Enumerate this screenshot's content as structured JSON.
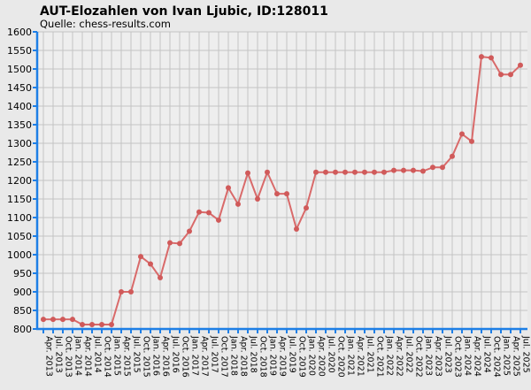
{
  "title": "AUT-Elozahlen von Ivan Ljubic, ID:128011",
  "subtitle": "Quelle: chess-results.com",
  "colors": {
    "background": "#e9e9e9",
    "plot_background": "#eeeeee",
    "grid": "#c4c4c4",
    "axis": "#1e7fe6",
    "series_line": "#d96a6a",
    "series_point": "#d05a5a"
  },
  "chart_data": {
    "type": "line",
    "title": "AUT-Elozahlen von Ivan Ljubic, ID:128011",
    "subtitle": "Quelle: chess-results.com",
    "xlabel": "",
    "ylabel": "",
    "ylim": [
      800,
      1600
    ],
    "ytick_step": 50,
    "grid": true,
    "legend": "none",
    "categories": [
      "Apr. 2013",
      "Jul. 2013",
      "Oct. 2013",
      "Jan. 2014",
      "Apr. 2014",
      "Jul. 2014",
      "Oct. 2014",
      "Jan. 2015",
      "Apr. 2015",
      "Jul. 2015",
      "Oct. 2015",
      "Jan. 2016",
      "Apr. 2016",
      "Jul. 2016",
      "Oct. 2016",
      "Jan. 2017",
      "Apr. 2017",
      "Jul. 2017",
      "Oct. 2017",
      "Jan. 2018",
      "Apr. 2018",
      "Jul. 2018",
      "Oct. 2018",
      "Jan. 2019",
      "Apr. 2019",
      "Jul. 2019",
      "Oct. 2019",
      "Jan. 2020",
      "Apr. 2020",
      "Jul. 2020",
      "Oct. 2020",
      "Jan. 2021",
      "Apr. 2021",
      "Jul. 2021",
      "Oct. 2021",
      "Jan. 2022",
      "Apr. 2022",
      "Jul. 2022",
      "Oct. 2022",
      "Jan. 2023",
      "Apr. 2023",
      "Jul. 2023",
      "Oct. 2023",
      "Jan. 2024",
      "Apr. 2024",
      "Jul. 2024",
      "Oct. 2024",
      "Jan. 2025",
      "Apr. 2025",
      "Jul. 2025"
    ],
    "values": [
      826,
      826,
      826,
      826,
      812,
      812,
      812,
      812,
      900,
      900,
      995,
      975,
      938,
      1032,
      1030,
      1063,
      1115,
      1113,
      1093,
      1180,
      1136,
      1220,
      1150,
      1222,
      1164,
      1164,
      1069,
      1126,
      1222,
      1222,
      1222,
      1222,
      1222,
      1222,
      1222,
      1222,
      1227,
      1227,
      1227,
      1225,
      1235,
      1235,
      1265,
      1325,
      1305,
      1533,
      1530,
      1485,
      1485,
      1510
    ]
  }
}
